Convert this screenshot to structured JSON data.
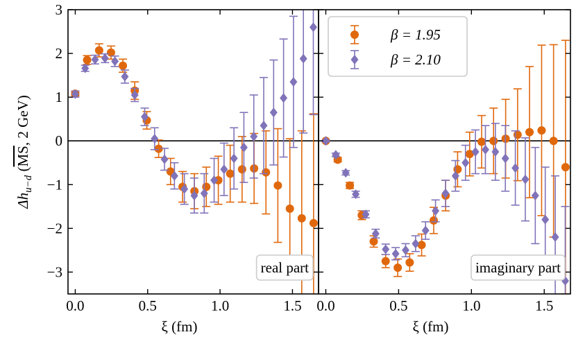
{
  "chart_data": [
    {
      "type": "scatter",
      "xlabel": "ξ (fm)",
      "ylabel": [
        "Δh",
        "u−d",
        " (",
        "MS",
        ", 2 GeV)"
      ],
      "annotation": "real part",
      "xlim": [
        -0.05,
        1.68
      ],
      "ylim": [
        -3.5,
        3
      ],
      "xticks": [
        {
          "value": 0,
          "label": "0.0"
        },
        0.5,
        {
          "value": 1,
          "label": "1.0"
        },
        1.5
      ],
      "yticks": [
        {
          "value": -3,
          "label": "−3"
        },
        {
          "value": -2,
          "label": "−2"
        },
        {
          "value": -1,
          "label": "−1"
        },
        0,
        1,
        2,
        3
      ],
      "series": [
        {
          "name": "β = 1.95",
          "color": "#e0680c",
          "marker": "circle",
          "x": [
            0,
            0.082,
            0.165,
            0.247,
            0.329,
            0.411,
            0.494,
            0.576,
            0.658,
            0.741,
            0.823,
            0.905,
            0.988,
            1.07,
            1.152,
            1.235,
            1.317,
            1.399,
            1.482,
            1.564,
            1.646
          ],
          "values": [
            1.08,
            1.85,
            2.07,
            2.02,
            1.72,
            1.15,
            0.47,
            -0.18,
            -0.7,
            -1.05,
            -1.15,
            -1.05,
            -0.9,
            -0.75,
            -0.65,
            -0.63,
            -0.72,
            -1.02,
            -1.55,
            -1.77,
            -1.88
          ],
          "errors": [
            0.05,
            0.1,
            0.15,
            0.15,
            0.15,
            0.2,
            0.2,
            0.2,
            0.3,
            0.35,
            0.4,
            0.45,
            0.55,
            0.65,
            0.75,
            0.8,
            0.95,
            1.3,
            1.6,
            2.0,
            2.5
          ]
        },
        {
          "name": "β = 2.10",
          "color": "#8173b9",
          "marker": "diamond",
          "x": [
            0,
            0.0685,
            0.137,
            0.2055,
            0.274,
            0.3425,
            0.411,
            0.4795,
            0.548,
            0.6165,
            0.685,
            0.7535,
            0.822,
            0.8905,
            0.959,
            1.0275,
            1.096,
            1.1645,
            1.233,
            1.3015,
            1.37,
            1.4385,
            1.507,
            1.5755,
            1.644
          ],
          "values": [
            1.07,
            1.66,
            1.86,
            1.89,
            1.82,
            1.47,
            1.05,
            0.55,
            0.05,
            -0.42,
            -0.8,
            -1.1,
            -1.25,
            -1.2,
            -0.9,
            -0.65,
            -0.4,
            -0.15,
            0.1,
            0.35,
            0.65,
            0.98,
            1.35,
            1.88,
            2.6
          ],
          "errors": [
            0.07,
            0.07,
            0.1,
            0.1,
            0.12,
            0.15,
            0.15,
            0.2,
            0.25,
            0.25,
            0.3,
            0.35,
            0.4,
            0.45,
            0.5,
            0.6,
            0.7,
            0.8,
            0.95,
            1.1,
            1.2,
            1.35,
            1.5,
            1.7,
            2.0
          ]
        }
      ]
    },
    {
      "type": "scatter",
      "xlabel": "ξ (fm)",
      "annotation": "imaginary part",
      "legend": "upper left",
      "xlim": [
        -0.05,
        1.68
      ],
      "ylim": [
        -3.5,
        3
      ],
      "xticks": [
        {
          "value": 0,
          "label": "0.0"
        },
        0.5,
        {
          "value": 1,
          "label": "1.0"
        },
        1.5
      ],
      "series": [
        {
          "name": "β = 1.95",
          "color": "#e0680c",
          "marker": "circle",
          "x": [
            0,
            0.082,
            0.165,
            0.247,
            0.329,
            0.411,
            0.494,
            0.576,
            0.658,
            0.741,
            0.823,
            0.905,
            0.988,
            1.07,
            1.152,
            1.235,
            1.317,
            1.399,
            1.482,
            1.564,
            1.646
          ],
          "values": [
            0,
            -0.43,
            -1.02,
            -1.7,
            -2.3,
            -2.75,
            -2.9,
            -2.78,
            -2.38,
            -1.82,
            -1.25,
            -0.65,
            -0.3,
            -0.02,
            0,
            0.05,
            0.14,
            0.2,
            0.24,
            0,
            -0.6
          ],
          "errors": [
            0.02,
            0.05,
            0.07,
            0.1,
            0.13,
            0.15,
            0.2,
            0.2,
            0.25,
            0.3,
            0.35,
            0.4,
            0.5,
            0.6,
            0.75,
            0.9,
            1.05,
            1.5,
            1.95,
            2.2,
            2.9
          ]
        },
        {
          "name": "β = 2.10",
          "color": "#8173b9",
          "marker": "diamond",
          "x": [
            0,
            0.0685,
            0.137,
            0.2055,
            0.274,
            0.3425,
            0.411,
            0.4795,
            0.548,
            0.6165,
            0.685,
            0.7535,
            0.822,
            0.8905,
            0.959,
            1.0275,
            1.096,
            1.1645,
            1.233,
            1.3015,
            1.37,
            1.4385,
            1.507,
            1.5755,
            1.644
          ],
          "values": [
            0,
            -0.32,
            -0.73,
            -1.22,
            -1.68,
            -2.12,
            -2.48,
            -2.58,
            -2.5,
            -2.35,
            -2.05,
            -1.6,
            -1.2,
            -0.8,
            -0.5,
            -0.25,
            -0.2,
            -0.25,
            -0.4,
            -0.62,
            -0.88,
            -1.25,
            -1.8,
            -2.2,
            -3.2
          ],
          "errors": [
            0.02,
            0.04,
            0.05,
            0.07,
            0.08,
            0.1,
            0.12,
            0.14,
            0.15,
            0.18,
            0.2,
            0.25,
            0.3,
            0.35,
            0.4,
            0.5,
            0.55,
            0.65,
            0.75,
            0.85,
            0.95,
            1.1,
            1.2,
            1.4,
            1.7
          ]
        }
      ]
    }
  ]
}
